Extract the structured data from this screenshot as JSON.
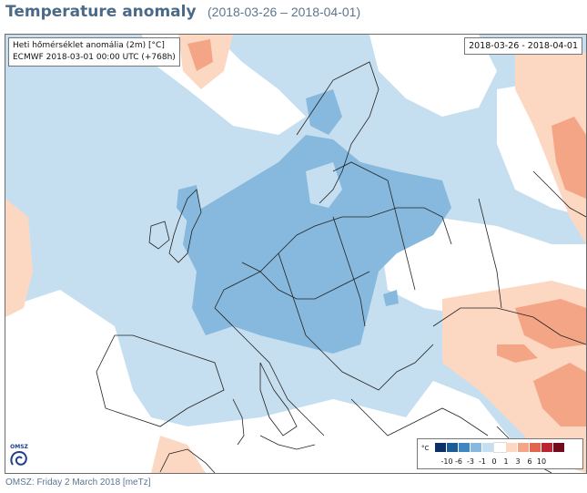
{
  "header": {
    "title": "Temperature anomaly",
    "date_range": "(2018-03-26 – 2018-04-01)"
  },
  "map": {
    "info_line1": "Heti hőmérséklet anomália (2m) [°C]",
    "info_line2": "ECMWF 2018-03-01 00:00 UTC (+768h)",
    "period_box": "2018-03-26 - 2018-04-01",
    "logo_text": "OMSZ",
    "legend": {
      "unit": "°C",
      "colors": [
        "#0b2f66",
        "#1b5b98",
        "#3f86c2",
        "#86b9dd",
        "#c6dff0",
        "#ffffff",
        "#fcd8c3",
        "#f4a585",
        "#e0664e",
        "#bd2433",
        "#740a1d"
      ],
      "ticks": [
        "-10",
        "-6",
        "-3",
        "-1",
        "0",
        "1",
        "3",
        "6",
        "10"
      ]
    }
  },
  "footer": {
    "text": "OMSZ: Friday 2 March 2018  [meTz]"
  }
}
